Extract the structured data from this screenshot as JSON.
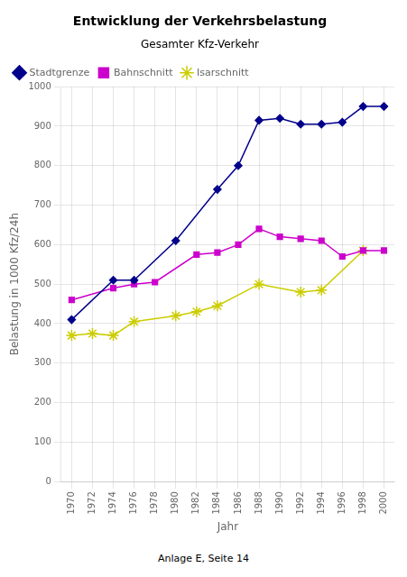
{
  "chart_data": {
    "type": "line",
    "title": "Entwicklung der Verkehrsbelastung",
    "subtitle": "Gesamter Kfz-Verkehr",
    "x_label": "Jahr",
    "y_label": "Belastung in 1000 Kfz/24h",
    "xlim": [
      1969,
      2001
    ],
    "xticks": [
      1970,
      1972,
      1974,
      1976,
      1978,
      1980,
      1982,
      1984,
      1986,
      1988,
      1990,
      1992,
      1994,
      1996,
      1998,
      2000
    ],
    "ylim": [
      0,
      1000
    ],
    "yticks": [
      0,
      100,
      200,
      300,
      400,
      500,
      600,
      700,
      800,
      900,
      1000
    ],
    "grid": true,
    "legend": "upper left",
    "annotations": [
      "Anlage E, Seite 14"
    ],
    "series": [
      {
        "name": "Stadtgrenze",
        "color": "#00008B",
        "marker": "diamond",
        "x": [
          1970,
          1974,
          1976,
          1980,
          1984,
          1986,
          1988,
          1990,
          1992,
          1994,
          1996,
          1998,
          2000
        ],
        "values": [
          410,
          510,
          510,
          610,
          740,
          800,
          915,
          920,
          905,
          905,
          910,
          950,
          950
        ]
      },
      {
        "name": "Bahnschnitt",
        "color": "#CC00CC",
        "marker": "square",
        "x": [
          1970,
          1974,
          1976,
          1978,
          1982,
          1984,
          1986,
          1988,
          1990,
          1992,
          1994,
          1996,
          1998,
          2000
        ],
        "values": [
          460,
          490,
          500,
          505,
          575,
          580,
          600,
          640,
          620,
          615,
          610,
          570,
          585,
          585
        ]
      },
      {
        "name": "Isarschnitt",
        "color": "#CCCC00",
        "marker": "star",
        "x": [
          1970,
          1972,
          1974,
          1976,
          1980,
          1982,
          1984,
          1988,
          1992,
          1994,
          1998
        ],
        "values": [
          370,
          375,
          370,
          405,
          420,
          430,
          445,
          500,
          480,
          485,
          585
        ]
      }
    ]
  }
}
